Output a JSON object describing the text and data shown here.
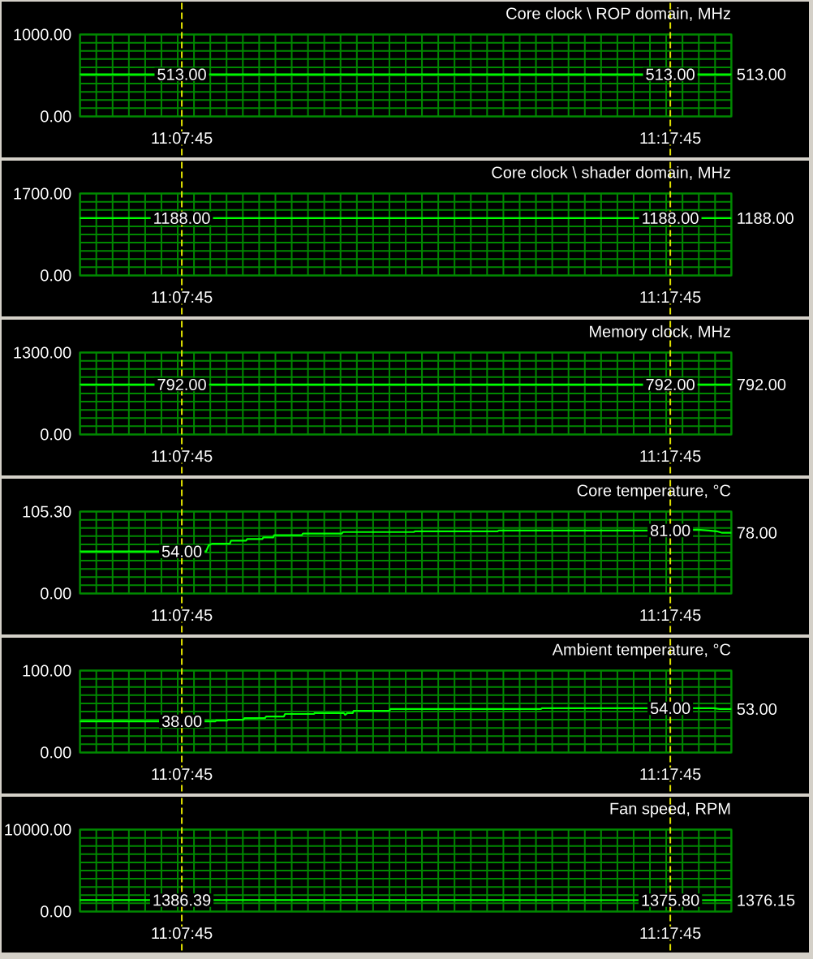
{
  "chart_data": [
    {
      "type": "line",
      "title": "Core clock \\ ROP domain, MHz",
      "x": [
        11.09444,
        11.12917,
        11.29583,
        11.31667
      ],
      "series": [
        {
          "color": "#00ff00",
          "values": [
            513,
            513,
            513,
            513
          ]
        }
      ],
      "xlim": [
        11.09444,
        11.31667
      ],
      "ylim": [
        0,
        1000
      ],
      "xticks": [
        {
          "value": 11.09444,
          "label": null
        },
        {
          "value": 11.1,
          "label": null
        },
        {
          "value": 11.10556,
          "label": null
        },
        {
          "value": 11.11111,
          "label": null
        },
        {
          "value": 11.11667,
          "label": null
        },
        {
          "value": 11.12222,
          "label": null
        },
        {
          "value": 11.12778,
          "label": null
        },
        {
          "value": 11.13333,
          "label": null
        },
        {
          "value": 11.13889,
          "label": null
        },
        {
          "value": 11.14444,
          "label": null
        },
        {
          "value": 11.15,
          "label": null
        },
        {
          "value": 11.15556,
          "label": null
        },
        {
          "value": 11.16111,
          "label": null
        },
        {
          "value": 11.16667,
          "label": null
        },
        {
          "value": 11.17222,
          "label": null
        },
        {
          "value": 11.17778,
          "label": null
        },
        {
          "value": 11.18333,
          "label": null
        },
        {
          "value": 11.18889,
          "label": null
        },
        {
          "value": 11.19444,
          "label": null
        },
        {
          "value": 11.2,
          "label": null
        },
        {
          "value": 11.20556,
          "label": null
        },
        {
          "value": 11.21111,
          "label": null
        },
        {
          "value": 11.21667,
          "label": null
        },
        {
          "value": 11.22222,
          "label": null
        },
        {
          "value": 11.22778,
          "label": null
        },
        {
          "value": 11.23333,
          "label": null
        },
        {
          "value": 11.23889,
          "label": null
        },
        {
          "value": 11.24444,
          "label": null
        },
        {
          "value": 11.25,
          "label": null
        },
        {
          "value": 11.25556,
          "label": null
        },
        {
          "value": 11.26111,
          "label": null
        },
        {
          "value": 11.26667,
          "label": null
        },
        {
          "value": 11.27222,
          "label": null
        },
        {
          "value": 11.27778,
          "label": null
        },
        {
          "value": 11.28333,
          "label": null
        },
        {
          "value": 11.28889,
          "label": null
        },
        {
          "value": 11.29444,
          "label": null
        },
        {
          "value": 11.3,
          "label": null
        },
        {
          "value": 11.30556,
          "label": null
        },
        {
          "value": 11.31111,
          "label": null
        },
        {
          "value": 11.31667,
          "label": null
        }
      ],
      "yticks": [
        {
          "value": 0,
          "label": "0.00"
        },
        {
          "value": 100,
          "label": null
        },
        {
          "value": 200,
          "label": null
        },
        {
          "value": 300,
          "label": null
        },
        {
          "value": 400,
          "label": null
        },
        {
          "value": 500,
          "label": null
        },
        {
          "value": 600,
          "label": null
        },
        {
          "value": 700,
          "label": null
        },
        {
          "value": 800,
          "label": null
        },
        {
          "value": 900,
          "label": null
        },
        {
          "value": 1000,
          "label": "1000.00"
        }
      ],
      "grid": true,
      "tick_labels": "y",
      "ref_lines": [
        {
          "axis": "x",
          "value": 11.12917,
          "label": "11:07:45",
          "color": "#e0e000",
          "line_style": "dashed"
        },
        {
          "axis": "x",
          "value": 11.29583,
          "label": "11:17:45",
          "color": "#e0e000",
          "line_style": "dashed"
        }
      ],
      "annotations": [
        {
          "text": "513.00",
          "x": 11.12917,
          "y": 513
        },
        {
          "text": "513.00",
          "x": 11.29583,
          "y": 513
        },
        {
          "text": "513.00",
          "x": 11.31667,
          "y": 513
        }
      ]
    },
    {
      "type": "line",
      "title": "Core clock \\ shader domain, MHz",
      "x": [
        11.09444,
        11.12917,
        11.29583,
        11.31667
      ],
      "series": [
        {
          "color": "#00ff00",
          "values": [
            1188,
            1188,
            1188,
            1188
          ]
        }
      ],
      "xlim": [
        11.09444,
        11.31667
      ],
      "ylim": [
        0,
        1700
      ],
      "xticks": [
        {
          "value": 11.09444,
          "label": null
        },
        {
          "value": 11.1,
          "label": null
        },
        {
          "value": 11.10556,
          "label": null
        },
        {
          "value": 11.11111,
          "label": null
        },
        {
          "value": 11.11667,
          "label": null
        },
        {
          "value": 11.12222,
          "label": null
        },
        {
          "value": 11.12778,
          "label": null
        },
        {
          "value": 11.13333,
          "label": null
        },
        {
          "value": 11.13889,
          "label": null
        },
        {
          "value": 11.14444,
          "label": null
        },
        {
          "value": 11.15,
          "label": null
        },
        {
          "value": 11.15556,
          "label": null
        },
        {
          "value": 11.16111,
          "label": null
        },
        {
          "value": 11.16667,
          "label": null
        },
        {
          "value": 11.17222,
          "label": null
        },
        {
          "value": 11.17778,
          "label": null
        },
        {
          "value": 11.18333,
          "label": null
        },
        {
          "value": 11.18889,
          "label": null
        },
        {
          "value": 11.19444,
          "label": null
        },
        {
          "value": 11.2,
          "label": null
        },
        {
          "value": 11.20556,
          "label": null
        },
        {
          "value": 11.21111,
          "label": null
        },
        {
          "value": 11.21667,
          "label": null
        },
        {
          "value": 11.22222,
          "label": null
        },
        {
          "value": 11.22778,
          "label": null
        },
        {
          "value": 11.23333,
          "label": null
        },
        {
          "value": 11.23889,
          "label": null
        },
        {
          "value": 11.24444,
          "label": null
        },
        {
          "value": 11.25,
          "label": null
        },
        {
          "value": 11.25556,
          "label": null
        },
        {
          "value": 11.26111,
          "label": null
        },
        {
          "value": 11.26667,
          "label": null
        },
        {
          "value": 11.27222,
          "label": null
        },
        {
          "value": 11.27778,
          "label": null
        },
        {
          "value": 11.28333,
          "label": null
        },
        {
          "value": 11.28889,
          "label": null
        },
        {
          "value": 11.29444,
          "label": null
        },
        {
          "value": 11.3,
          "label": null
        },
        {
          "value": 11.30556,
          "label": null
        },
        {
          "value": 11.31111,
          "label": null
        },
        {
          "value": 11.31667,
          "label": null
        }
      ],
      "yticks": [
        {
          "value": 0,
          "label": "0.00"
        },
        {
          "value": 170,
          "label": null
        },
        {
          "value": 340,
          "label": null
        },
        {
          "value": 510,
          "label": null
        },
        {
          "value": 680,
          "label": null
        },
        {
          "value": 850,
          "label": null
        },
        {
          "value": 1020,
          "label": null
        },
        {
          "value": 1190,
          "label": null
        },
        {
          "value": 1360,
          "label": null
        },
        {
          "value": 1530,
          "label": null
        },
        {
          "value": 1700,
          "label": "1700.00"
        }
      ],
      "grid": true,
      "tick_labels": "y",
      "ref_lines": [
        {
          "axis": "x",
          "value": 11.12917,
          "label": "11:07:45",
          "color": "#e0e000",
          "line_style": "dashed"
        },
        {
          "axis": "x",
          "value": 11.29583,
          "label": "11:17:45",
          "color": "#e0e000",
          "line_style": "dashed"
        }
      ],
      "annotations": [
        {
          "text": "1188.00",
          "x": 11.12917,
          "y": 1188
        },
        {
          "text": "1188.00",
          "x": 11.29583,
          "y": 1188
        },
        {
          "text": "1188.00",
          "x": 11.31667,
          "y": 1188
        }
      ]
    },
    {
      "type": "line",
      "title": "Memory clock, MHz",
      "x": [
        11.09444,
        11.12917,
        11.29583,
        11.31667
      ],
      "series": [
        {
          "color": "#00ff00",
          "values": [
            792,
            792,
            792,
            792
          ]
        }
      ],
      "xlim": [
        11.09444,
        11.31667
      ],
      "ylim": [
        0,
        1300
      ],
      "xticks": [
        {
          "value": 11.09444,
          "label": null
        },
        {
          "value": 11.1,
          "label": null
        },
        {
          "value": 11.10556,
          "label": null
        },
        {
          "value": 11.11111,
          "label": null
        },
        {
          "value": 11.11667,
          "label": null
        },
        {
          "value": 11.12222,
          "label": null
        },
        {
          "value": 11.12778,
          "label": null
        },
        {
          "value": 11.13333,
          "label": null
        },
        {
          "value": 11.13889,
          "label": null
        },
        {
          "value": 11.14444,
          "label": null
        },
        {
          "value": 11.15,
          "label": null
        },
        {
          "value": 11.15556,
          "label": null
        },
        {
          "value": 11.16111,
          "label": null
        },
        {
          "value": 11.16667,
          "label": null
        },
        {
          "value": 11.17222,
          "label": null
        },
        {
          "value": 11.17778,
          "label": null
        },
        {
          "value": 11.18333,
          "label": null
        },
        {
          "value": 11.18889,
          "label": null
        },
        {
          "value": 11.19444,
          "label": null
        },
        {
          "value": 11.2,
          "label": null
        },
        {
          "value": 11.20556,
          "label": null
        },
        {
          "value": 11.21111,
          "label": null
        },
        {
          "value": 11.21667,
          "label": null
        },
        {
          "value": 11.22222,
          "label": null
        },
        {
          "value": 11.22778,
          "label": null
        },
        {
          "value": 11.23333,
          "label": null
        },
        {
          "value": 11.23889,
          "label": null
        },
        {
          "value": 11.24444,
          "label": null
        },
        {
          "value": 11.25,
          "label": null
        },
        {
          "value": 11.25556,
          "label": null
        },
        {
          "value": 11.26111,
          "label": null
        },
        {
          "value": 11.26667,
          "label": null
        },
        {
          "value": 11.27222,
          "label": null
        },
        {
          "value": 11.27778,
          "label": null
        },
        {
          "value": 11.28333,
          "label": null
        },
        {
          "value": 11.28889,
          "label": null
        },
        {
          "value": 11.29444,
          "label": null
        },
        {
          "value": 11.3,
          "label": null
        },
        {
          "value": 11.30556,
          "label": null
        },
        {
          "value": 11.31111,
          "label": null
        },
        {
          "value": 11.31667,
          "label": null
        }
      ],
      "yticks": [
        {
          "value": 0,
          "label": "0.00"
        },
        {
          "value": 130,
          "label": null
        },
        {
          "value": 260,
          "label": null
        },
        {
          "value": 390,
          "label": null
        },
        {
          "value": 520,
          "label": null
        },
        {
          "value": 650,
          "label": null
        },
        {
          "value": 780,
          "label": null
        },
        {
          "value": 910,
          "label": null
        },
        {
          "value": 1040,
          "label": null
        },
        {
          "value": 1170,
          "label": null
        },
        {
          "value": 1300,
          "label": "1300.00"
        }
      ],
      "grid": true,
      "tick_labels": "y",
      "ref_lines": [
        {
          "axis": "x",
          "value": 11.12917,
          "label": "11:07:45",
          "color": "#e0e000",
          "line_style": "dashed"
        },
        {
          "axis": "x",
          "value": 11.29583,
          "label": "11:17:45",
          "color": "#e0e000",
          "line_style": "dashed"
        }
      ],
      "annotations": [
        {
          "text": "792.00",
          "x": 11.12917,
          "y": 792
        },
        {
          "text": "792.00",
          "x": 11.29583,
          "y": 792
        },
        {
          "text": "792.00",
          "x": 11.31667,
          "y": 792
        }
      ]
    },
    {
      "type": "line",
      "title": "Core temperature, °C",
      "x": [
        11.09444,
        11.12917,
        11.13745,
        11.13837,
        11.13948,
        11.14557,
        11.14594,
        11.1511,
        11.15147,
        11.15664,
        11.15701,
        11.16033,
        11.1607,
        11.17011,
        11.17048,
        11.18377,
        11.18414,
        11.20832,
        11.20869,
        11.23692,
        11.23729,
        11.29583,
        11.30521,
        11.3089,
        11.31167,
        11.31352,
        11.31667
      ],
      "series": [
        {
          "color": "#00ff00",
          "values": [
            54,
            54,
            54,
            62,
            64,
            64,
            68,
            68,
            70,
            70,
            72,
            72,
            75,
            75,
            77,
            77,
            79,
            79,
            80,
            80,
            81,
            81,
            82,
            81,
            80,
            78,
            78
          ]
        }
      ],
      "xlim": [
        11.09444,
        11.31667
      ],
      "ylim": [
        0,
        105.3
      ],
      "xticks": [
        {
          "value": 11.09444,
          "label": null
        },
        {
          "value": 11.1,
          "label": null
        },
        {
          "value": 11.10556,
          "label": null
        },
        {
          "value": 11.11111,
          "label": null
        },
        {
          "value": 11.11667,
          "label": null
        },
        {
          "value": 11.12222,
          "label": null
        },
        {
          "value": 11.12778,
          "label": null
        },
        {
          "value": 11.13333,
          "label": null
        },
        {
          "value": 11.13889,
          "label": null
        },
        {
          "value": 11.14444,
          "label": null
        },
        {
          "value": 11.15,
          "label": null
        },
        {
          "value": 11.15556,
          "label": null
        },
        {
          "value": 11.16111,
          "label": null
        },
        {
          "value": 11.16667,
          "label": null
        },
        {
          "value": 11.17222,
          "label": null
        },
        {
          "value": 11.17778,
          "label": null
        },
        {
          "value": 11.18333,
          "label": null
        },
        {
          "value": 11.18889,
          "label": null
        },
        {
          "value": 11.19444,
          "label": null
        },
        {
          "value": 11.2,
          "label": null
        },
        {
          "value": 11.20556,
          "label": null
        },
        {
          "value": 11.21111,
          "label": null
        },
        {
          "value": 11.21667,
          "label": null
        },
        {
          "value": 11.22222,
          "label": null
        },
        {
          "value": 11.22778,
          "label": null
        },
        {
          "value": 11.23333,
          "label": null
        },
        {
          "value": 11.23889,
          "label": null
        },
        {
          "value": 11.24444,
          "label": null
        },
        {
          "value": 11.25,
          "label": null
        },
        {
          "value": 11.25556,
          "label": null
        },
        {
          "value": 11.26111,
          "label": null
        },
        {
          "value": 11.26667,
          "label": null
        },
        {
          "value": 11.27222,
          "label": null
        },
        {
          "value": 11.27778,
          "label": null
        },
        {
          "value": 11.28333,
          "label": null
        },
        {
          "value": 11.28889,
          "label": null
        },
        {
          "value": 11.29444,
          "label": null
        },
        {
          "value": 11.3,
          "label": null
        },
        {
          "value": 11.30556,
          "label": null
        },
        {
          "value": 11.31111,
          "label": null
        },
        {
          "value": 11.31667,
          "label": null
        }
      ],
      "yticks": [
        {
          "value": 0,
          "label": "0.00"
        },
        {
          "value": 10.53,
          "label": null
        },
        {
          "value": 21.06,
          "label": null
        },
        {
          "value": 31.59,
          "label": null
        },
        {
          "value": 42.12,
          "label": null
        },
        {
          "value": 52.65,
          "label": null
        },
        {
          "value": 63.18,
          "label": null
        },
        {
          "value": 73.71,
          "label": null
        },
        {
          "value": 84.24,
          "label": null
        },
        {
          "value": 94.77,
          "label": null
        },
        {
          "value": 105.3,
          "label": "105.30"
        }
      ],
      "grid": true,
      "tick_labels": "y",
      "ref_lines": [
        {
          "axis": "x",
          "value": 11.12917,
          "label": "11:07:45",
          "color": "#e0e000",
          "line_style": "dashed"
        },
        {
          "axis": "x",
          "value": 11.29583,
          "label": "11:17:45",
          "color": "#e0e000",
          "line_style": "dashed"
        }
      ],
      "annotations": [
        {
          "text": "54.00",
          "x": 11.12917,
          "y": 54
        },
        {
          "text": "81.00",
          "x": 11.29583,
          "y": 81
        },
        {
          "text": "78.00",
          "x": 11.31667,
          "y": 78
        }
      ]
    },
    {
      "type": "line",
      "title": "Ambient temperature, °C",
      "x": [
        11.09444,
        11.12917,
        11.14058,
        11.14095,
        11.14464,
        11.14501,
        11.15018,
        11.15055,
        11.15756,
        11.15793,
        11.16402,
        11.16439,
        11.17417,
        11.17454,
        11.1845,
        11.18487,
        11.18561,
        11.18746,
        11.18783,
        11.20001,
        11.20038,
        11.24061,
        11.25169,
        11.25205,
        11.29583,
        11.31074,
        11.31259,
        11.31667
      ],
      "series": [
        {
          "color": "#00ff00",
          "values": [
            38,
            38,
            38,
            39,
            39,
            40,
            40,
            42,
            42,
            44,
            44,
            47,
            47,
            48,
            48,
            46,
            48,
            48,
            51,
            51,
            53,
            53,
            53,
            54,
            54,
            54,
            53,
            53
          ]
        }
      ],
      "xlim": [
        11.09444,
        11.31667
      ],
      "ylim": [
        0,
        100
      ],
      "xticks": [
        {
          "value": 11.09444,
          "label": null
        },
        {
          "value": 11.1,
          "label": null
        },
        {
          "value": 11.10556,
          "label": null
        },
        {
          "value": 11.11111,
          "label": null
        },
        {
          "value": 11.11667,
          "label": null
        },
        {
          "value": 11.12222,
          "label": null
        },
        {
          "value": 11.12778,
          "label": null
        },
        {
          "value": 11.13333,
          "label": null
        },
        {
          "value": 11.13889,
          "label": null
        },
        {
          "value": 11.14444,
          "label": null
        },
        {
          "value": 11.15,
          "label": null
        },
        {
          "value": 11.15556,
          "label": null
        },
        {
          "value": 11.16111,
          "label": null
        },
        {
          "value": 11.16667,
          "label": null
        },
        {
          "value": 11.17222,
          "label": null
        },
        {
          "value": 11.17778,
          "label": null
        },
        {
          "value": 11.18333,
          "label": null
        },
        {
          "value": 11.18889,
          "label": null
        },
        {
          "value": 11.19444,
          "label": null
        },
        {
          "value": 11.2,
          "label": null
        },
        {
          "value": 11.20556,
          "label": null
        },
        {
          "value": 11.21111,
          "label": null
        },
        {
          "value": 11.21667,
          "label": null
        },
        {
          "value": 11.22222,
          "label": null
        },
        {
          "value": 11.22778,
          "label": null
        },
        {
          "value": 11.23333,
          "label": null
        },
        {
          "value": 11.23889,
          "label": null
        },
        {
          "value": 11.24444,
          "label": null
        },
        {
          "value": 11.25,
          "label": null
        },
        {
          "value": 11.25556,
          "label": null
        },
        {
          "value": 11.26111,
          "label": null
        },
        {
          "value": 11.26667,
          "label": null
        },
        {
          "value": 11.27222,
          "label": null
        },
        {
          "value": 11.27778,
          "label": null
        },
        {
          "value": 11.28333,
          "label": null
        },
        {
          "value": 11.28889,
          "label": null
        },
        {
          "value": 11.29444,
          "label": null
        },
        {
          "value": 11.3,
          "label": null
        },
        {
          "value": 11.30556,
          "label": null
        },
        {
          "value": 11.31111,
          "label": null
        },
        {
          "value": 11.31667,
          "label": null
        }
      ],
      "yticks": [
        {
          "value": 0,
          "label": "0.00"
        },
        {
          "value": 10,
          "label": null
        },
        {
          "value": 20,
          "label": null
        },
        {
          "value": 30,
          "label": null
        },
        {
          "value": 40,
          "label": null
        },
        {
          "value": 50,
          "label": null
        },
        {
          "value": 60,
          "label": null
        },
        {
          "value": 70,
          "label": null
        },
        {
          "value": 80,
          "label": null
        },
        {
          "value": 90,
          "label": null
        },
        {
          "value": 100,
          "label": "100.00"
        }
      ],
      "grid": true,
      "tick_labels": "y",
      "ref_lines": [
        {
          "axis": "x",
          "value": 11.12917,
          "label": "11:07:45",
          "color": "#e0e000",
          "line_style": "dashed"
        },
        {
          "axis": "x",
          "value": 11.29583,
          "label": "11:17:45",
          "color": "#e0e000",
          "line_style": "dashed"
        }
      ],
      "annotations": [
        {
          "text": "38.00",
          "x": 11.12917,
          "y": 38
        },
        {
          "text": "54.00",
          "x": 11.29583,
          "y": 54
        },
        {
          "text": "53.00",
          "x": 11.31667,
          "y": 53
        }
      ]
    },
    {
      "type": "line",
      "title": "Fan speed, RPM",
      "x": [
        11.09444,
        11.12917,
        11.29583,
        11.31667
      ],
      "series": [
        {
          "color": "#00ff00",
          "values": [
            1386.39,
            1386.39,
            1375.8,
            1376.15
          ]
        }
      ],
      "xlim": [
        11.09444,
        11.31667
      ],
      "ylim": [
        0,
        10000
      ],
      "xticks": [
        {
          "value": 11.09444,
          "label": null
        },
        {
          "value": 11.1,
          "label": null
        },
        {
          "value": 11.10556,
          "label": null
        },
        {
          "value": 11.11111,
          "label": null
        },
        {
          "value": 11.11667,
          "label": null
        },
        {
          "value": 11.12222,
          "label": null
        },
        {
          "value": 11.12778,
          "label": null
        },
        {
          "value": 11.13333,
          "label": null
        },
        {
          "value": 11.13889,
          "label": null
        },
        {
          "value": 11.14444,
          "label": null
        },
        {
          "value": 11.15,
          "label": null
        },
        {
          "value": 11.15556,
          "label": null
        },
        {
          "value": 11.16111,
          "label": null
        },
        {
          "value": 11.16667,
          "label": null
        },
        {
          "value": 11.17222,
          "label": null
        },
        {
          "value": 11.17778,
          "label": null
        },
        {
          "value": 11.18333,
          "label": null
        },
        {
          "value": 11.18889,
          "label": null
        },
        {
          "value": 11.19444,
          "label": null
        },
        {
          "value": 11.2,
          "label": null
        },
        {
          "value": 11.20556,
          "label": null
        },
        {
          "value": 11.21111,
          "label": null
        },
        {
          "value": 11.21667,
          "label": null
        },
        {
          "value": 11.22222,
          "label": null
        },
        {
          "value": 11.22778,
          "label": null
        },
        {
          "value": 11.23333,
          "label": null
        },
        {
          "value": 11.23889,
          "label": null
        },
        {
          "value": 11.24444,
          "label": null
        },
        {
          "value": 11.25,
          "label": null
        },
        {
          "value": 11.25556,
          "label": null
        },
        {
          "value": 11.26111,
          "label": null
        },
        {
          "value": 11.26667,
          "label": null
        },
        {
          "value": 11.27222,
          "label": null
        },
        {
          "value": 11.27778,
          "label": null
        },
        {
          "value": 11.28333,
          "label": null
        },
        {
          "value": 11.28889,
          "label": null
        },
        {
          "value": 11.29444,
          "label": null
        },
        {
          "value": 11.3,
          "label": null
        },
        {
          "value": 11.30556,
          "label": null
        },
        {
          "value": 11.31111,
          "label": null
        },
        {
          "value": 11.31667,
          "label": null
        }
      ],
      "yticks": [
        {
          "value": 0,
          "label": "0.00"
        },
        {
          "value": 1000,
          "label": null
        },
        {
          "value": 2000,
          "label": null
        },
        {
          "value": 3000,
          "label": null
        },
        {
          "value": 4000,
          "label": null
        },
        {
          "value": 5000,
          "label": null
        },
        {
          "value": 6000,
          "label": null
        },
        {
          "value": 7000,
          "label": null
        },
        {
          "value": 8000,
          "label": null
        },
        {
          "value": 9000,
          "label": null
        },
        {
          "value": 10000,
          "label": "10000.00"
        }
      ],
      "grid": true,
      "tick_labels": "y",
      "ref_lines": [
        {
          "axis": "x",
          "value": 11.12917,
          "label": "11:07:45",
          "color": "#e0e000",
          "line_style": "dashed"
        },
        {
          "axis": "x",
          "value": 11.29583,
          "label": "11:17:45",
          "color": "#e0e000",
          "line_style": "dashed"
        }
      ],
      "annotations": [
        {
          "text": "1386.39",
          "x": 11.12917,
          "y": 1386.39
        },
        {
          "text": "1375.80",
          "x": 11.29583,
          "y": 1375.8
        },
        {
          "text": "1376.15",
          "x": 11.31667,
          "y": 1376.15
        }
      ]
    }
  ]
}
